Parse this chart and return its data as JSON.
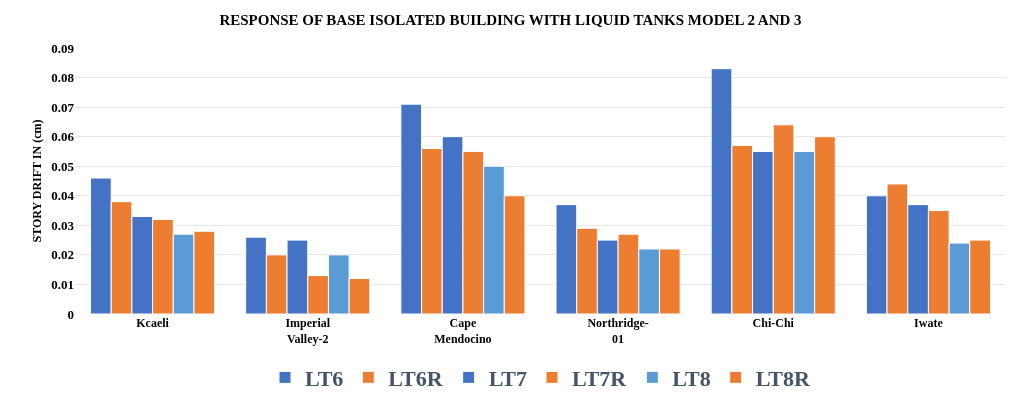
{
  "chart_data": {
    "type": "bar",
    "title": "RESPONSE OF BASE ISOLATED BUILDING WITH LIQUID TANKS MODEL 2 AND 3",
    "ylabel": "STORY DRIFT IN (cm)",
    "categories": [
      "Kcaeli",
      "Imperial\nValley-2",
      "Cape\nMendocino",
      "Northridge-\n01",
      "Chi-Chi",
      "Iwate"
    ],
    "series": [
      {
        "name": "LT6",
        "color": "#4472c4",
        "values": [
          0.046,
          0.026,
          0.071,
          0.037,
          0.083,
          0.04
        ]
      },
      {
        "name": "LT6R",
        "color": "#ed7d31",
        "values": [
          0.038,
          0.02,
          0.056,
          0.029,
          0.057,
          0.044
        ]
      },
      {
        "name": "LT7",
        "color": "#4472c4",
        "values": [
          0.033,
          0.025,
          0.06,
          0.025,
          0.055,
          0.037
        ]
      },
      {
        "name": "LT7R",
        "color": "#ed7d31",
        "values": [
          0.032,
          0.013,
          0.055,
          0.027,
          0.064,
          0.035
        ]
      },
      {
        "name": "LT8",
        "color": "#5b9bd5",
        "values": [
          0.027,
          0.02,
          0.05,
          0.022,
          0.055,
          0.024
        ]
      },
      {
        "name": "LT8R",
        "color": "#ed7d31",
        "values": [
          0.028,
          0.012,
          0.04,
          0.022,
          0.06,
          0.025
        ]
      }
    ],
    "ylim": [
      0,
      0.09
    ],
    "yticks": [
      0,
      0.01,
      0.02,
      0.03,
      0.04,
      0.05,
      0.06,
      0.07,
      0.08,
      0.09
    ],
    "grid": "y",
    "legend": "bottom"
  }
}
